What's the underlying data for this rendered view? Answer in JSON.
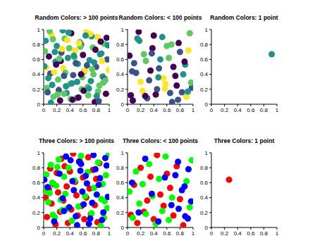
{
  "chart_data": [
    {
      "type": "scatter",
      "title": "Random Colors: > 100 points",
      "xlim": [
        0,
        1
      ],
      "ylim": [
        0,
        1
      ],
      "xticks": [
        0,
        0.2,
        0.4,
        0.6,
        0.8,
        1
      ],
      "yticks": [
        0,
        0.2,
        0.4,
        0.6,
        0.8,
        1
      ],
      "marker": "circle",
      "series": [
        {
          "x": [
            0.03,
            0.05,
            0.08,
            0.1,
            0.12,
            0.15,
            0.18,
            0.2,
            0.22,
            0.25,
            0.27,
            0.3,
            0.32,
            0.35,
            0.37,
            0.4,
            0.42,
            0.45,
            0.48,
            0.5,
            0.52,
            0.55,
            0.58,
            0.6,
            0.62,
            0.65,
            0.68,
            0.7,
            0.72,
            0.75,
            0.78,
            0.8,
            0.82,
            0.85,
            0.88,
            0.9,
            0.92,
            0.95,
            0.97,
            0.99,
            0.02,
            0.07,
            0.11,
            0.14,
            0.19,
            0.23,
            0.28,
            0.33,
            0.38,
            0.43,
            0.47,
            0.53,
            0.57,
            0.63,
            0.67,
            0.73,
            0.77,
            0.83,
            0.87,
            0.93,
            0.04,
            0.09,
            0.13,
            0.17,
            0.21,
            0.26,
            0.31,
            0.36,
            0.41,
            0.46,
            0.51,
            0.56,
            0.61,
            0.66,
            0.71,
            0.76,
            0.81,
            0.86,
            0.91,
            0.96,
            0.06,
            0.16,
            0.24,
            0.29,
            0.34,
            0.39,
            0.44,
            0.49,
            0.54,
            0.59,
            0.64,
            0.69,
            0.74,
            0.79,
            0.84,
            0.89,
            0.94,
            0.98,
            0.01,
            0.31,
            0.57
          ],
          "y": [
            0.85,
            0.22,
            0.64,
            0.41,
            0.93,
            0.1,
            0.57,
            0.78,
            0.33,
            0.05,
            0.69,
            0.48,
            0.88,
            0.15,
            0.62,
            0.27,
            0.95,
            0.39,
            0.72,
            0.08,
            0.54,
            0.83,
            0.2,
            0.66,
            0.44,
            0.97,
            0.12,
            0.59,
            0.31,
            0.76,
            0.03,
            0.5,
            0.9,
            0.25,
            0.68,
            0.37,
            0.81,
            0.14,
            0.6,
            0.46,
            0.71,
            0.35,
            0.02,
            0.87,
            0.53,
            0.19,
            0.74,
            0.42,
            0.96,
            0.28,
            0.63,
            0.09,
            0.8,
            0.45,
            0.23,
            0.91,
            0.56,
            0.17,
            0.84,
            0.34,
            0.49,
            0.98,
            0.26,
            0.7,
            0.13,
            0.58,
            0.38,
            0.86,
            0.07,
            0.65,
            0.3,
            0.77,
            0.18,
            0.52,
            0.94,
            0.4,
            0.11,
            0.67,
            0.29,
            0.89,
            0.16,
            0.43,
            0.61,
            0.99,
            0.24,
            0.75,
            0.06,
            0.55,
            0.82,
            0.36,
            0.92,
            0.21,
            0.47,
            0.73,
            0.04,
            0.58,
            0.32,
            0.79,
            0.51,
            0.14,
            0.4
          ],
          "colors": [
            "#21918c",
            "#5ec962",
            "#440154",
            "#3b528b",
            "#fde725",
            "#5ec962",
            "#21918c",
            "#21918c",
            "#5ec962",
            "#440154",
            "#3b528b",
            "#fde725",
            "#5ec962",
            "#21918c",
            "#21918c",
            "#5ec962",
            "#440154",
            "#3b528b",
            "#fde725",
            "#5ec962",
            "#21918c",
            "#21918c",
            "#5ec962",
            "#440154",
            "#3b528b",
            "#fde725",
            "#5ec962",
            "#21918c",
            "#21918c",
            "#5ec962",
            "#440154",
            "#3b528b",
            "#fde725",
            "#5ec962",
            "#21918c",
            "#21918c",
            "#5ec962",
            "#440154",
            "#3b528b",
            "#fde725",
            "#5ec962",
            "#21918c",
            "#21918c",
            "#5ec962",
            "#440154",
            "#3b528b",
            "#fde725",
            "#5ec962",
            "#21918c",
            "#21918c",
            "#5ec962",
            "#440154",
            "#3b528b",
            "#fde725",
            "#5ec962",
            "#21918c",
            "#21918c",
            "#5ec962",
            "#440154",
            "#3b528b",
            "#fde725",
            "#5ec962",
            "#21918c",
            "#21918c",
            "#5ec962",
            "#440154",
            "#3b528b",
            "#fde725",
            "#5ec962",
            "#21918c",
            "#21918c",
            "#5ec962",
            "#440154",
            "#3b528b",
            "#fde725",
            "#5ec962",
            "#21918c",
            "#21918c",
            "#5ec962",
            "#440154",
            "#3b528b",
            "#fde725",
            "#5ec962",
            "#21918c",
            "#21918c",
            "#5ec962",
            "#440154",
            "#3b528b",
            "#fde725",
            "#5ec962",
            "#21918c",
            "#21918c",
            "#5ec962",
            "#440154",
            "#3b528b",
            "#fde725",
            "#5ec962",
            "#21918c",
            "#21918c",
            "#5ec962",
            "#440154"
          ]
        }
      ]
    },
    {
      "type": "scatter",
      "title": "Random Colors: < 100 points",
      "xlim": [
        0,
        1
      ],
      "ylim": [
        0,
        1
      ],
      "xticks": [
        0,
        0.2,
        0.4,
        0.6,
        0.8,
        1
      ],
      "yticks": [
        0,
        0.2,
        0.4,
        0.6,
        0.8,
        1
      ],
      "marker": "circle",
      "series": [
        {
          "x": [
            0.05,
            0.1,
            0.15,
            0.2,
            0.25,
            0.3,
            0.35,
            0.4,
            0.45,
            0.5,
            0.55,
            0.6,
            0.65,
            0.7,
            0.75,
            0.8,
            0.85,
            0.9,
            0.95,
            0.98,
            0.03,
            0.08,
            0.13,
            0.18,
            0.23,
            0.28,
            0.33,
            0.38,
            0.43,
            0.48,
            0.53,
            0.58,
            0.63,
            0.68,
            0.73,
            0.78,
            0.83,
            0.88,
            0.93,
            0.97,
            0.07,
            0.17,
            0.27,
            0.37,
            0.47,
            0.57,
            0.67,
            0.77,
            0.87,
            0.92
          ],
          "y": [
            0.12,
            0.55,
            0.88,
            0.3,
            0.67,
            0.08,
            0.45,
            0.92,
            0.2,
            0.6,
            0.35,
            0.78,
            0.15,
            0.5,
            0.25,
            0.7,
            0.4,
            0.1,
            0.95,
            0.22,
            0.65,
            0.05,
            0.42,
            0.85,
            0.18,
            0.58,
            0.32,
            0.75,
            0.13,
            0.48,
            0.9,
            0.27,
            0.62,
            0.03,
            0.38,
            0.82,
            0.16,
            0.53,
            0.72,
            0.29,
            0.44,
            0.97,
            0.11,
            0.68,
            0.36,
            0.21,
            0.8,
            0.06,
            0.57,
            0.17
          ],
          "colors": [
            "#440154",
            "#3b528b",
            "#21918c",
            "#fde725",
            "#5ec962",
            "#3b528b",
            "#440154",
            "#440154",
            "#3b528b",
            "#21918c",
            "#fde725",
            "#5ec962",
            "#3b528b",
            "#440154",
            "#440154",
            "#3b528b",
            "#21918c",
            "#fde725",
            "#5ec962",
            "#3b528b",
            "#440154",
            "#440154",
            "#3b528b",
            "#21918c",
            "#fde725",
            "#5ec962",
            "#3b528b",
            "#440154",
            "#440154",
            "#3b528b",
            "#21918c",
            "#fde725",
            "#5ec962",
            "#3b528b",
            "#440154",
            "#440154",
            "#3b528b",
            "#21918c",
            "#fde725",
            "#5ec962",
            "#3b528b",
            "#440154",
            "#440154",
            "#3b528b",
            "#21918c",
            "#fde725",
            "#5ec962",
            "#3b528b",
            "#440154",
            "#21918c"
          ]
        }
      ]
    },
    {
      "type": "scatter",
      "title": "Random Colors: 1 point",
      "xlim": [
        0,
        1
      ],
      "ylim": [
        0,
        1
      ],
      "xticks": [
        0,
        0.2,
        0.4,
        0.6,
        0.8,
        1
      ],
      "yticks": [
        0,
        0.2,
        0.4,
        0.6,
        0.8,
        1
      ],
      "marker": "circle",
      "series": [
        {
          "x": [
            0.92
          ],
          "y": [
            0.67
          ],
          "colors": [
            "#21918c"
          ]
        }
      ]
    },
    {
      "type": "scatter",
      "title": "Three Colors: > 100 points",
      "xlim": [
        0,
        1
      ],
      "ylim": [
        0,
        1
      ],
      "xticks": [
        0,
        0.2,
        0.4,
        0.6,
        0.8,
        1
      ],
      "yticks": [
        0,
        0.2,
        0.4,
        0.6,
        0.8,
        1
      ],
      "marker": "circle",
      "series": [
        {
          "color": "#ff0000",
          "x": [
            0.03,
            0.05,
            0.08,
            0.1,
            0.12,
            0.15,
            0.18,
            0.2,
            0.22,
            0.25,
            0.27,
            0.3,
            0.32,
            0.35,
            0.37,
            0.4,
            0.42,
            0.45,
            0.48,
            0.5,
            0.52,
            0.55,
            0.58,
            0.6,
            0.62,
            0.65,
            0.68,
            0.7,
            0.72,
            0.75,
            0.78,
            0.8,
            0.82,
            0.85
          ],
          "y": [
            0.4,
            0.14,
            0.51,
            0.79,
            0.32,
            0.58,
            0.04,
            0.73,
            0.47,
            0.21,
            0.92,
            0.36,
            0.82,
            0.55,
            0.06,
            0.75,
            0.24,
            0.99,
            0.61,
            0.43,
            0.16,
            0.89,
            0.29,
            0.67,
            0.11,
            0.4,
            0.94,
            0.52,
            0.18,
            0.77,
            0.3,
            0.65,
            0.07,
            0.86
          ]
        },
        {
          "color": "#00ff00",
          "x": [
            0.88,
            0.9,
            0.92,
            0.95,
            0.97,
            0.99,
            0.02,
            0.07,
            0.11,
            0.14,
            0.19,
            0.23,
            0.28,
            0.33,
            0.38,
            0.43,
            0.47,
            0.53,
            0.57,
            0.63,
            0.67,
            0.73,
            0.77,
            0.83,
            0.87,
            0.93,
            0.04,
            0.09,
            0.13,
            0.17,
            0.21,
            0.26,
            0.31,
            0.36
          ],
          "y": [
            0.38,
            0.58,
            0.13,
            0.7,
            0.26,
            0.98,
            0.49,
            0.34,
            0.84,
            0.17,
            0.56,
            0.91,
            0.23,
            0.45,
            0.8,
            0.09,
            0.63,
            0.28,
            0.96,
            0.42,
            0.74,
            0.19,
            0.53,
            0.87,
            0.02,
            0.35,
            0.71,
            0.46,
            0.6,
            0.14,
            0.81,
            0.37,
            0.68,
            0.25
          ]
        },
        {
          "color": "#0000ff",
          "x": [
            0.41,
            0.46,
            0.51,
            0.56,
            0.61,
            0.66,
            0.71,
            0.76,
            0.81,
            0.86,
            0.91,
            0.96,
            0.06,
            0.16,
            0.24,
            0.29,
            0.34,
            0.39,
            0.44,
            0.49,
            0.54,
            0.59,
            0.64,
            0.69,
            0.74,
            0.79,
            0.84,
            0.89,
            0.94,
            0.98,
            0.01,
            0.31,
            0.57
          ],
          "y": [
            0.9,
            0.5,
            0.03,
            0.76,
            0.31,
            0.59,
            0.12,
            0.97,
            0.44,
            0.66,
            0.2,
            0.83,
            0.54,
            0.08,
            0.72,
            0.39,
            0.95,
            0.27,
            0.62,
            0.15,
            0.88,
            0.48,
            0.69,
            0.05,
            0.33,
            0.78,
            0.57,
            0.1,
            0.93,
            0.41,
            0.64,
            0.22,
            0.85
          ]
        }
      ]
    },
    {
      "type": "scatter",
      "title": "Three Colors: < 100 points",
      "xlim": [
        0,
        1
      ],
      "ylim": [
        0,
        1
      ],
      "xticks": [
        0,
        0.2,
        0.4,
        0.6,
        0.8,
        1
      ],
      "yticks": [
        0,
        0.2,
        0.4,
        0.6,
        0.8,
        1
      ],
      "marker": "circle",
      "series": [
        {
          "color": "#ff0000",
          "x": [
            0.05,
            0.1,
            0.15,
            0.2,
            0.25,
            0.3,
            0.35,
            0.4,
            0.45,
            0.5,
            0.55,
            0.6,
            0.65,
            0.7,
            0.75,
            0.8,
            0.85
          ],
          "y": [
            0.17,
            0.57,
            0.06,
            0.8,
            0.21,
            0.36,
            0.68,
            0.11,
            0.97,
            0.44,
            0.29,
            0.72,
            0.53,
            0.16,
            0.82,
            0.38,
            0.03
          ]
        },
        {
          "color": "#00ff00",
          "x": [
            0.9,
            0.95,
            0.98,
            0.03,
            0.08,
            0.13,
            0.18,
            0.23,
            0.28,
            0.33,
            0.38,
            0.43,
            0.48,
            0.53,
            0.58,
            0.63,
            0.68
          ],
          "y": [
            0.62,
            0.27,
            0.9,
            0.48,
            0.13,
            0.75,
            0.32,
            0.58,
            0.18,
            0.85,
            0.42,
            0.05,
            0.65,
            0.22,
            0.95,
            0.1,
            0.4
          ]
        },
        {
          "color": "#0000ff",
          "x": [
            0.73,
            0.78,
            0.83,
            0.88,
            0.93,
            0.97,
            0.07,
            0.17,
            0.27,
            0.37,
            0.47,
            0.57,
            0.67,
            0.77,
            0.87,
            0.92
          ],
          "y": [
            0.7,
            0.25,
            0.5,
            0.15,
            0.78,
            0.35,
            0.6,
            0.2,
            0.92,
            0.45,
            0.08,
            0.67,
            0.3,
            0.88,
            0.55,
            0.12
          ]
        }
      ]
    },
    {
      "type": "scatter",
      "title": "Three Colors: 1 point",
      "xlim": [
        0,
        1
      ],
      "ylim": [
        0,
        1
      ],
      "xticks": [
        0,
        0.2,
        0.4,
        0.6,
        0.8,
        1
      ],
      "yticks": [
        0,
        0.2,
        0.4,
        0.6,
        0.8,
        1
      ],
      "marker": "circle",
      "series": [
        {
          "color": "#ff0000",
          "x": [
            0.27
          ],
          "y": [
            0.64
          ]
        }
      ]
    }
  ]
}
